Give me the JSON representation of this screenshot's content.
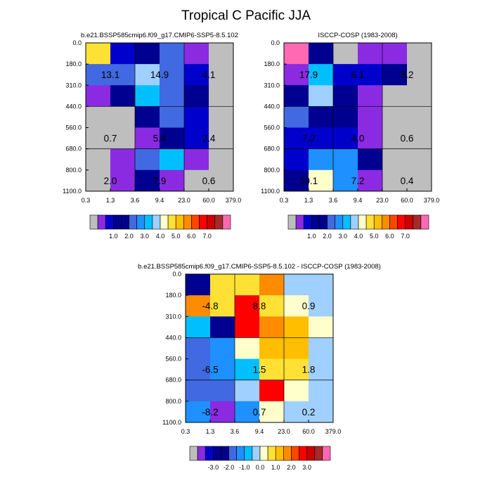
{
  "page_title": "Tropical C Pacific JJA",
  "scales": {
    "abs": {
      "colors": [
        "#bebebe",
        "#8a2be2",
        "#0000cd",
        "#000090",
        "#00008b",
        "#4169e1",
        "#1e90ff",
        "#00bfff",
        "#a0d0ff",
        "#ffffcc",
        "#ffe135",
        "#ffbe00",
        "#ff8c00",
        "#ff4500",
        "#ff0000",
        "#cc0000",
        "#a52a2a",
        "#ff69b4"
      ],
      "tick_labels": [
        "1.0",
        "2.0",
        "3.0",
        "4.0",
        "5.0",
        "6.0",
        "7.0"
      ]
    },
    "diff": {
      "colors": [
        "#bebebe",
        "#8a2be2",
        "#0000cd",
        "#000090",
        "#00008b",
        "#4169e1",
        "#1e90ff",
        "#00bfff",
        "#a0d0ff",
        "#ffffcc",
        "#ffe135",
        "#ffbe00",
        "#ff8c00",
        "#ff4500",
        "#ff0000",
        "#cc0000",
        "#a52a2a",
        "#ff69b4"
      ],
      "tick_labels": [
        "-3.0",
        "-2.0",
        "-1.0",
        "0.0",
        "1.0",
        "2.0",
        "3.0"
      ]
    }
  },
  "chart_data": [
    {
      "type": "heatmap",
      "title": "b.e21.BSSP585cmip6.f09_g17.CMIP6-SSP5-8.5.102",
      "x_tick_labels": [
        "0.3",
        "1.3",
        "3.6",
        "9.4",
        "23.0",
        "60.0",
        "379.0"
      ],
      "y_tick_labels": [
        "0.0",
        "180.0",
        "310.0",
        "440.0",
        "560.0",
        "680.0",
        "800.0",
        "1100.0"
      ],
      "colorbar": "abs",
      "cells": [
        [
          10,
          2,
          3,
          5,
          1,
          0
        ],
        [
          5,
          5,
          8,
          5,
          2,
          0
        ],
        [
          1,
          3,
          7,
          5,
          3,
          0
        ],
        [
          0,
          0,
          3,
          5,
          2,
          0
        ],
        [
          0,
          0,
          1,
          3,
          2,
          0
        ],
        [
          0,
          1,
          5,
          7,
          1,
          0
        ],
        [
          0,
          1,
          3,
          1,
          0,
          0
        ]
      ],
      "annotations": [
        {
          "label": "13.1",
          "col": 1,
          "row": 1
        },
        {
          "label": "14.9",
          "col": 3,
          "row": 1
        },
        {
          "label": "4.1",
          "col": 5,
          "row": 1
        },
        {
          "label": "0.7",
          "col": 1,
          "row": 4
        },
        {
          "label": "5.4",
          "col": 3,
          "row": 4
        },
        {
          "label": "2.4",
          "col": 5,
          "row": 4
        },
        {
          "label": "2.0",
          "col": 1,
          "row": 6
        },
        {
          "label": "7.9",
          "col": 3,
          "row": 6
        },
        {
          "label": "0.6",
          "col": 5,
          "row": 6
        }
      ]
    },
    {
      "type": "heatmap",
      "title": "ISCCP-COSP (1983-2008)",
      "x_tick_labels": [
        "0.3",
        "1.3",
        "3.6",
        "9.4",
        "23.0",
        "60.0",
        "379.0"
      ],
      "y_tick_labels": [
        "0.0",
        "180.0",
        "310.0",
        "440.0",
        "560.0",
        "680.0",
        "800.0",
        "1100.0"
      ],
      "colorbar": "abs",
      "cells": [
        [
          17,
          3,
          0,
          1,
          1,
          0
        ],
        [
          1,
          7,
          2,
          2,
          3,
          0
        ],
        [
          3,
          8,
          3,
          1,
          0,
          0
        ],
        [
          5,
          3,
          3,
          1,
          0,
          0
        ],
        [
          2,
          2,
          2,
          1,
          0,
          0
        ],
        [
          2,
          6,
          6,
          3,
          0,
          0
        ],
        [
          3,
          9,
          6,
          1,
          0,
          0
        ]
      ],
      "annotations": [
        {
          "label": "17.9",
          "col": 1,
          "row": 1
        },
        {
          "label": "6.1",
          "col": 3,
          "row": 1
        },
        {
          "label": "3.2",
          "col": 5,
          "row": 1
        },
        {
          "label": "7.2",
          "col": 1,
          "row": 4
        },
        {
          "label": "4.0",
          "col": 3,
          "row": 4
        },
        {
          "label": "0.6",
          "col": 5,
          "row": 4
        },
        {
          "label": "10.1",
          "col": 1,
          "row": 6
        },
        {
          "label": "7.2",
          "col": 3,
          "row": 6
        },
        {
          "label": "0.4",
          "col": 5,
          "row": 6
        }
      ]
    },
    {
      "type": "heatmap",
      "title": "b.e21.BSSP585cmip6.f09_g17.CMIP6-SSP5-8.5.102 - ISCCP-COSP (1983-2008)",
      "x_tick_labels": [
        "0.3",
        "1.3",
        "3.6",
        "9.4",
        "23.0",
        "60.0",
        "379.0"
      ],
      "y_tick_labels": [
        "0.0",
        "180.0",
        "310.0",
        "440.0",
        "560.0",
        "680.0",
        "800.0",
        "1100.0"
      ],
      "colorbar": "diff",
      "cells": [
        [
          3,
          10,
          10,
          12,
          8,
          8
        ],
        [
          12,
          10,
          14,
          10,
          9,
          8
        ],
        [
          7,
          3,
          14,
          12,
          11,
          9
        ],
        [
          5,
          6,
          9,
          11,
          11,
          8
        ],
        [
          5,
          6,
          7,
          10,
          10,
          8
        ],
        [
          5,
          5,
          8,
          14,
          9,
          8
        ],
        [
          6,
          1,
          6,
          9,
          8,
          8
        ]
      ],
      "annotations": [
        {
          "label": "-4.8",
          "col": 1,
          "row": 1
        },
        {
          "label": "8.8",
          "col": 3,
          "row": 1
        },
        {
          "label": "0.9",
          "col": 5,
          "row": 1
        },
        {
          "label": "-6.5",
          "col": 1,
          "row": 4
        },
        {
          "label": "1.5",
          "col": 3,
          "row": 4
        },
        {
          "label": "1.8",
          "col": 5,
          "row": 4
        },
        {
          "label": "-8.2",
          "col": 1,
          "row": 6
        },
        {
          "label": "0.7",
          "col": 3,
          "row": 6
        },
        {
          "label": "0.2",
          "col": 5,
          "row": 6
        }
      ]
    }
  ]
}
